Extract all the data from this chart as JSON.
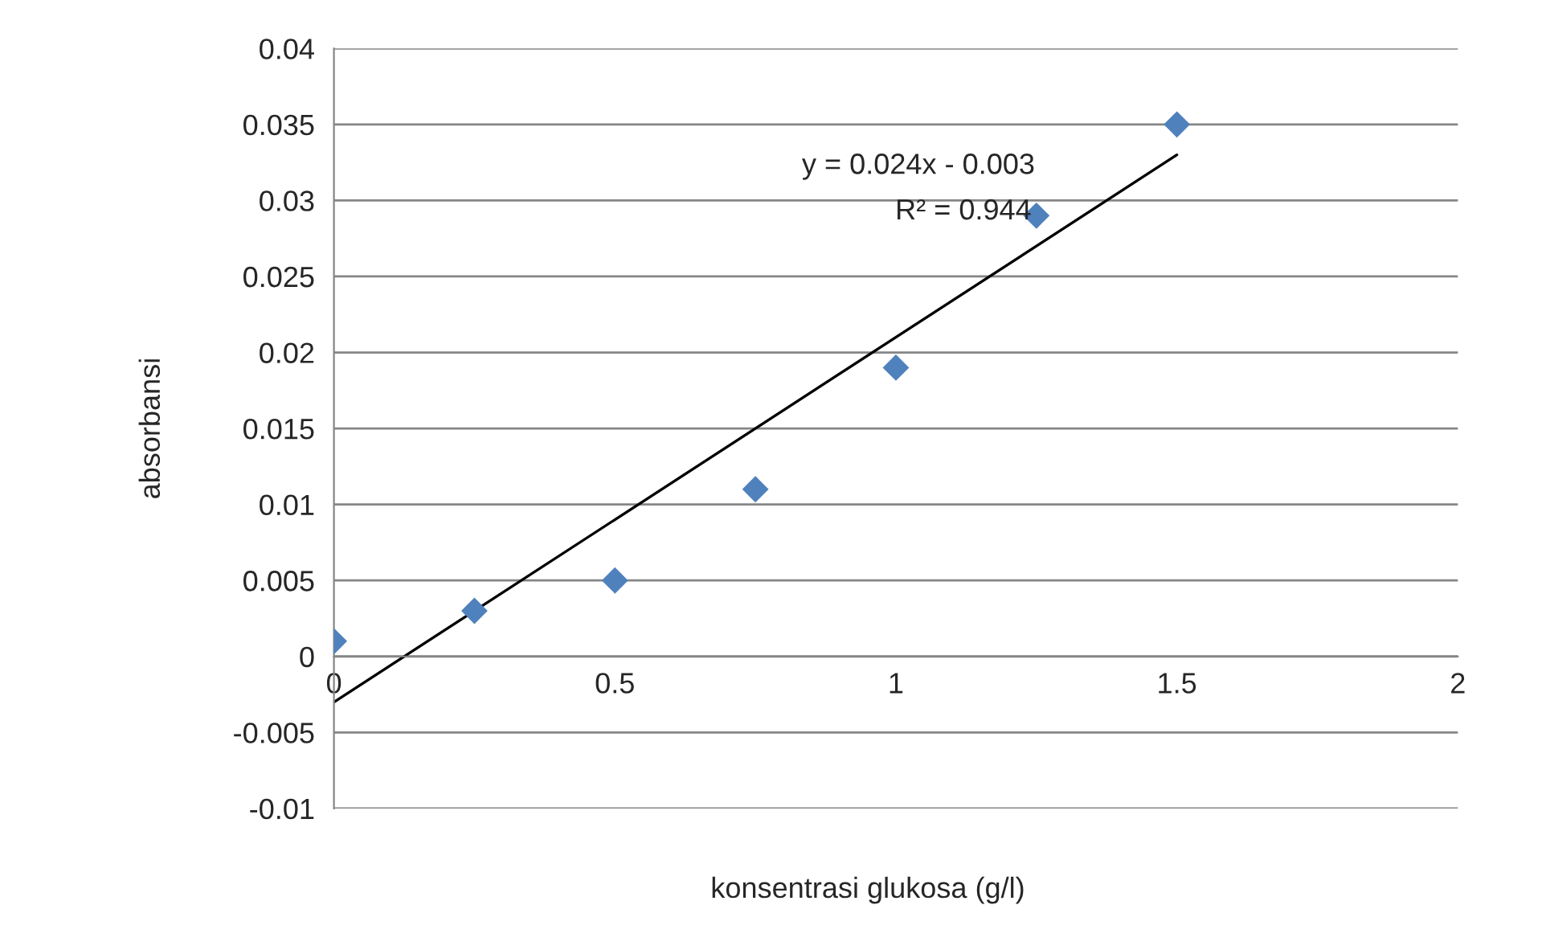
{
  "chart_data": {
    "type": "scatter",
    "xlabel": "konsentrasi glukosa (g/l)",
    "ylabel": "absorbansi",
    "series": [
      {
        "color": "#4f81bd",
        "marker": "diamond",
        "x": [
          0,
          0.25,
          0.5,
          0.75,
          1,
          1.25,
          1.5
        ],
        "values": [
          0.001,
          0.003,
          0.005,
          0.011,
          0.019,
          0.029,
          0.035
        ]
      },
      {
        "type": "line",
        "color": "#000000",
        "marker": "none",
        "line_style": "solid",
        "x": [
          0,
          1.5
        ],
        "values": [
          -0.003,
          0.033
        ]
      }
    ],
    "annotations": [
      "y = 0.024x - 0.003",
      "R² = 0.944"
    ],
    "xlim": [
      0,
      2
    ],
    "xticks": [
      0,
      0.5,
      1,
      1.5,
      2
    ],
    "ylim": [
      -0.01,
      0.04
    ],
    "yticks": [
      -0.01,
      -0.005,
      0,
      0.005,
      0.01,
      0.015,
      0.02,
      0.025,
      0.03,
      0.035,
      0.04
    ],
    "grid": "y",
    "legend": false
  }
}
